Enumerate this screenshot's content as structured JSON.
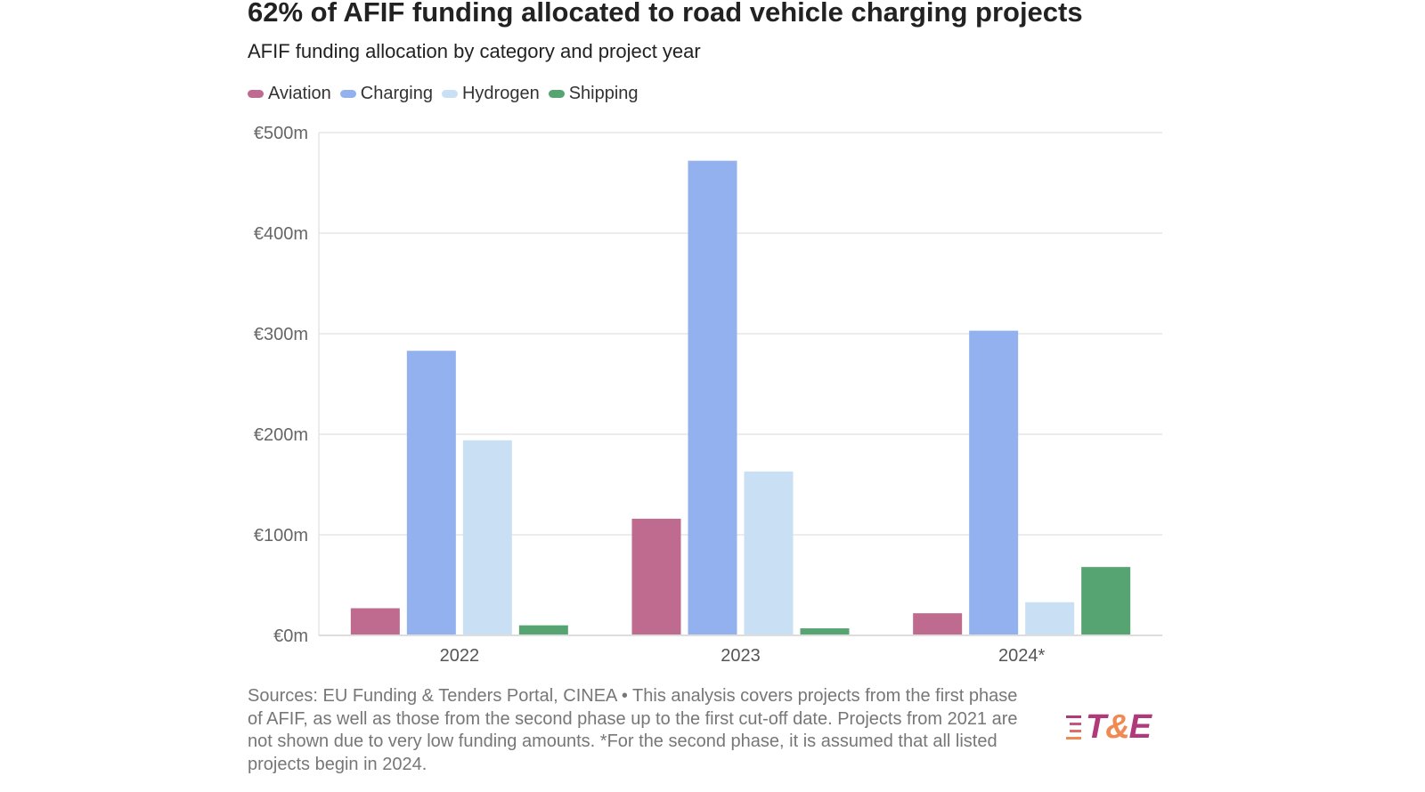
{
  "title": "62% of AFIF funding allocated to road vehicle charging projects",
  "subtitle": "AFIF funding allocation by category and project year",
  "colors": {
    "Aviation": "#bf6a8f",
    "Charging": "#93b1ef",
    "Hydrogen": "#c9dff4",
    "Shipping": "#55a471",
    "grid": "#e6e6e6",
    "axis": "#dddddd"
  },
  "chart_data": {
    "type": "bar",
    "title": "62% of AFIF funding allocated to road vehicle charging projects",
    "subtitle": "AFIF funding allocation by category and project year",
    "categories": [
      "2022",
      "2023",
      "2024*"
    ],
    "series": [
      {
        "name": "Aviation",
        "values": [
          27,
          116,
          22
        ]
      },
      {
        "name": "Charging",
        "values": [
          283,
          472,
          303
        ]
      },
      {
        "name": "Hydrogen",
        "values": [
          194,
          163,
          33
        ]
      },
      {
        "name": "Shipping",
        "values": [
          10,
          7,
          68
        ]
      }
    ],
    "y_ticks": [
      "€0m",
      "€100m",
      "€200m",
      "€300m",
      "€400m",
      "€500m"
    ],
    "ylim": [
      0,
      500
    ],
    "unit": "€m",
    "grid": true,
    "legend_position": "top-left"
  },
  "note": "Sources: EU Funding & Tenders Portal, CINEA • This analysis covers projects from the first phase of AFIF, as well as those from the second phase up to the first cut-off date. Projects from 2021 are not shown due to very low funding amounts. *For the second phase, it is assumed that all listed projects begin in 2024.",
  "logo": {
    "part1": "T",
    "amp": "&",
    "part2": "E"
  }
}
